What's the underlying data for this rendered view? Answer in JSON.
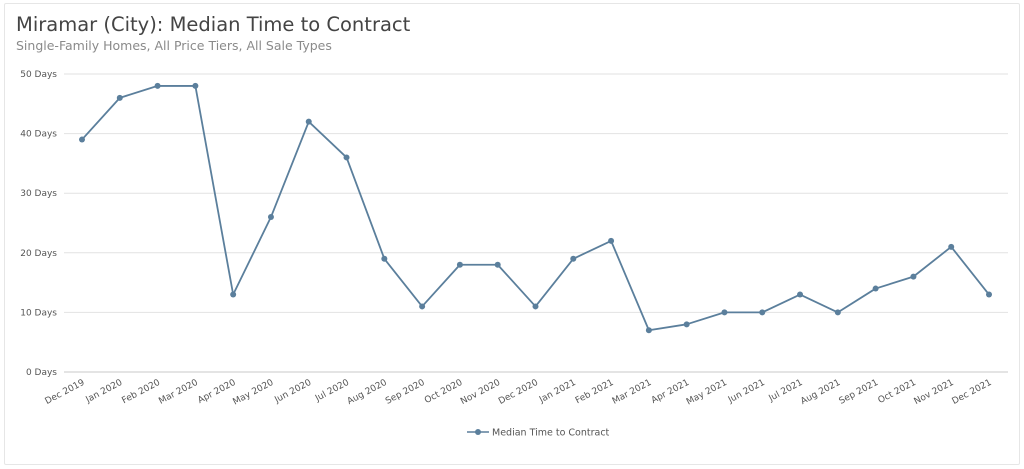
{
  "title": "Miramar (City): Median Time to Contract",
  "subtitle": "Single-Family Homes, All Price Tiers, All Sale Types",
  "colors": {
    "line": "#5b7f9c",
    "grid": "#e2e2e2",
    "axis": "#c8c8c8"
  },
  "chart_data": {
    "type": "line",
    "title": "Miramar (City): Median Time to Contract",
    "subtitle": "Single-Family Homes, All Price Tiers, All Sale Types",
    "categories": [
      "Dec 2019",
      "Jan 2020",
      "Feb 2020",
      "Mar 2020",
      "Apr 2020",
      "May 2020",
      "Jun 2020",
      "Jul 2020",
      "Aug 2020",
      "Sep 2020",
      "Oct 2020",
      "Nov 2020",
      "Dec 2020",
      "Jan 2021",
      "Feb 2021",
      "Mar 2021",
      "Apr 2021",
      "May 2021",
      "Jun 2021",
      "Jul 2021",
      "Aug 2021",
      "Sep 2021",
      "Oct 2021",
      "Nov 2021",
      "Dec 2021"
    ],
    "series": [
      {
        "name": "Median Time to Contract",
        "values": [
          39,
          46,
          48,
          48,
          13,
          26,
          42,
          36,
          19,
          11,
          18,
          18,
          11,
          19,
          22,
          7,
          8,
          10,
          10,
          13,
          10,
          14,
          16,
          21,
          13
        ]
      }
    ],
    "yticks": [
      "0 Days",
      "10 Days",
      "20 Days",
      "30 Days",
      "40 Days",
      "50 Days"
    ],
    "ylim": [
      0,
      50
    ],
    "grid": true,
    "legend": "bottom-center"
  }
}
